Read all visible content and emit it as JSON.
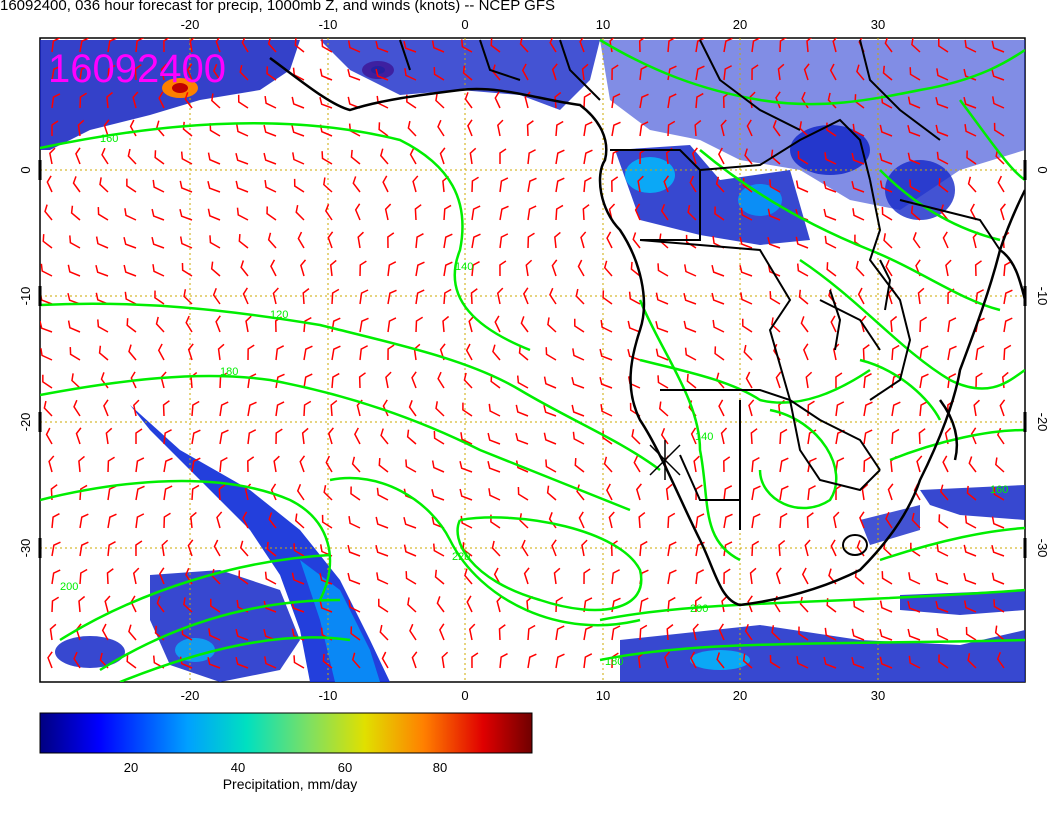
{
  "title": "16092400, 036 hour forecast for precip, 1000mb Z, and winds (knots) -- NCEP GFS",
  "stamp": "16092400",
  "axes": {
    "lon_ticks": [
      "-20",
      "-10",
      "0",
      "10",
      "20",
      "30"
    ],
    "lat_ticks": [
      "0",
      "-10",
      "-20",
      "-30"
    ]
  },
  "contour_labels": [
    "120",
    "140",
    "160",
    "180",
    "200",
    "220",
    "140",
    "160",
    "180",
    "200"
  ],
  "colorbar": {
    "label": "Precipitation, mm/day",
    "ticks": [
      "20",
      "40",
      "60",
      "80"
    ],
    "min": 0,
    "max": 100
  },
  "colors": {
    "coast": "#000000",
    "contour": "#00ee00",
    "barb": "#ff0000",
    "grid": "#ccaa00",
    "stamp": "#ff00ff",
    "precip_low": "#000080",
    "precip_high": "#800000"
  }
}
